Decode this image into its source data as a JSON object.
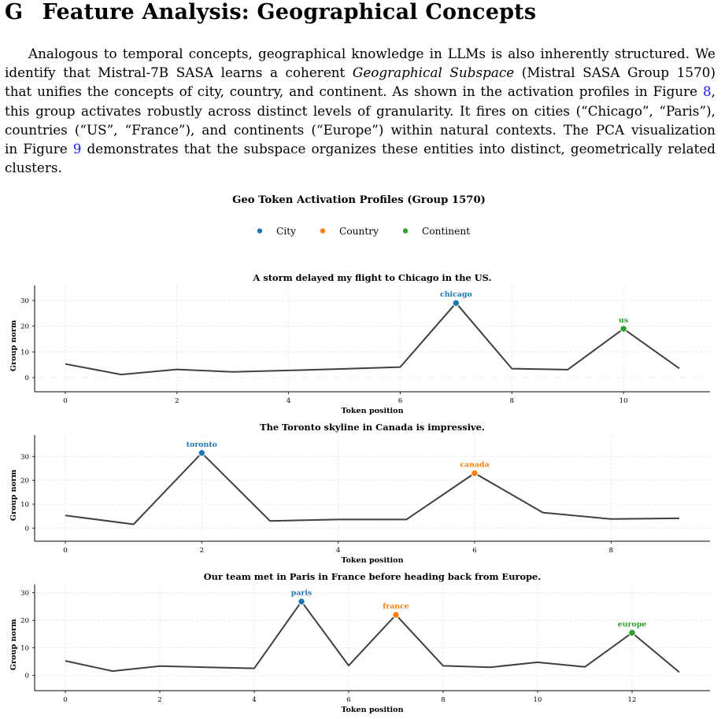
{
  "section": {
    "number": "G",
    "title": "Feature Analysis: Geographical Concepts"
  },
  "paragraph": {
    "l1": "Analogous to temporal concepts, geographical knowledge in LLMs is also inherently structured. We",
    "l2a": "identify that Mistral-7B SASA learns a coherent ",
    "l2em": "Geographical Subspace",
    "l2b": " (Mistral SASA Group 1570)",
    "l3a": "that unifies the concepts of city, country, and continent. As shown in the activation profiles in Figure ",
    "l3ref": "8",
    "l3b": ",",
    "l4": "this group activates robustly across distinct levels of granularity. It fires on cities (“Chicago”, “Paris”),",
    "l5": "countries (“US”, “France”), and continents (“Europe”) within natural contexts. The PCA visualization",
    "l6a": "in Figure ",
    "l6ref": "9",
    "l6b": " demonstrates that the subspace organizes these entities into distinct, geometrically related",
    "l7": "clusters."
  },
  "colors": {
    "city": "#1f77b4",
    "country": "#ff7f0e",
    "continent": "#2ca02c",
    "line": "#404040"
  },
  "figure": {
    "title": "Geo Token Activation Profiles (Group 1570)",
    "legend": [
      {
        "label": "City",
        "category": "city"
      },
      {
        "label": "Country",
        "category": "country"
      },
      {
        "label": "Continent",
        "category": "continent"
      }
    ]
  },
  "chart_data": [
    {
      "type": "line",
      "title": "A storm delayed my flight to Chicago in the US.",
      "xlabel": "Token position",
      "ylabel": "Group norm",
      "x": [
        0,
        1,
        2,
        3,
        4,
        5,
        6,
        7,
        8,
        9,
        10,
        11
      ],
      "values": [
        5.3,
        1.2,
        3.2,
        2.2,
        2.8,
        3.4,
        4.1,
        29.0,
        3.5,
        3.1,
        19.0,
        3.6
      ],
      "xticks": [
        0,
        2,
        4,
        6,
        8,
        10
      ],
      "yticks": [
        0,
        10,
        20,
        30
      ],
      "xlim": [
        -0.55,
        11.55
      ],
      "ylim": [
        -5.5,
        35.8
      ],
      "grid": true,
      "highlights": [
        {
          "x": 7,
          "label": "chicago",
          "category": "city"
        },
        {
          "x": 10,
          "label": "us",
          "category": "continent"
        }
      ]
    },
    {
      "type": "line",
      "title": "The Toronto skyline in Canada is impressive.",
      "xlabel": "Token position",
      "ylabel": "Group norm",
      "x": [
        0,
        1,
        2,
        3,
        4,
        5,
        6,
        7,
        8,
        9
      ],
      "values": [
        5.3,
        1.6,
        31.5,
        3.0,
        3.6,
        3.6,
        23.0,
        6.5,
        3.8,
        4.1
      ],
      "xticks": [
        0,
        2,
        4,
        6,
        8
      ],
      "yticks": [
        0,
        10,
        20,
        30
      ],
      "xlim": [
        -0.45,
        9.45
      ],
      "ylim": [
        -5.5,
        39.0
      ],
      "grid": true,
      "highlights": [
        {
          "x": 2,
          "label": "toronto",
          "category": "city"
        },
        {
          "x": 6,
          "label": "canada",
          "category": "country"
        }
      ]
    },
    {
      "type": "line",
      "title": "Our team met in Paris in France before heading back from Europe.",
      "xlabel": "Token position",
      "ylabel": "Group norm",
      "x": [
        0,
        1,
        2,
        3,
        4,
        5,
        6,
        7,
        8,
        9,
        10,
        11,
        12,
        13
      ],
      "values": [
        5.3,
        1.6,
        3.4,
        3.0,
        2.6,
        26.8,
        3.6,
        22.0,
        3.5,
        3.0,
        4.8,
        3.1,
        15.5,
        1.2
      ],
      "xticks": [
        0,
        2,
        4,
        6,
        8,
        10,
        12
      ],
      "yticks": [
        0,
        10,
        20,
        30
      ],
      "xlim": [
        -0.65,
        13.65
      ],
      "ylim": [
        -5.5,
        33.0
      ],
      "grid": true,
      "highlights": [
        {
          "x": 5,
          "label": "paris",
          "category": "city"
        },
        {
          "x": 7,
          "label": "france",
          "category": "country"
        },
        {
          "x": 12,
          "label": "europe",
          "category": "continent"
        }
      ]
    }
  ]
}
